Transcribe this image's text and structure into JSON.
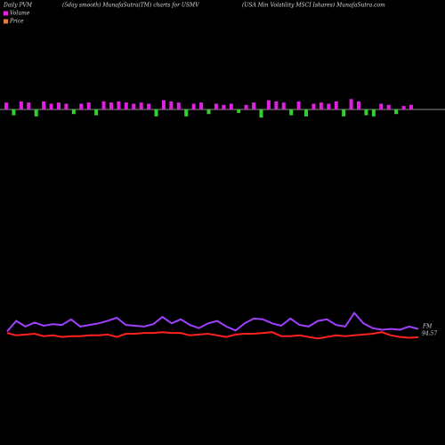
{
  "chart_data": {
    "type": "pvm",
    "title_left": "Daily PVM",
    "title": "(5day smooth) MunafaSutra(TM) charts for USMV",
    "title_right": "(USA Min Volatility MSCI Ishares) MunafaSutra.com",
    "bars": {
      "name": "Volume",
      "color": "#e020e0",
      "down_color": "#30d030",
      "values": [
        6,
        -5,
        7,
        6,
        -6,
        7,
        5,
        6,
        5,
        -4,
        5,
        6,
        -5,
        7,
        6,
        7,
        6,
        5,
        6,
        5,
        -6,
        8,
        7,
        6,
        -6,
        5,
        6,
        -4,
        5,
        4,
        5,
        -3,
        4,
        6,
        -7,
        8,
        7,
        6,
        -5,
        7,
        -6,
        5,
        6,
        5,
        7,
        -6,
        9,
        7,
        -5,
        -6,
        5,
        4,
        -4,
        3,
        4
      ]
    },
    "ylim": [
      90,
      100
    ],
    "series": [
      {
        "color": "#a040ff",
        "values": [
          95.3,
          96.6,
          95.9,
          96.4,
          96.0,
          96.2,
          96.1,
          96.8,
          95.9,
          96.1,
          96.3,
          96.6,
          97.0,
          96.1,
          96.0,
          95.9,
          96.2,
          97.1,
          96.3,
          96.8,
          96.1,
          95.7,
          96.3,
          96.6,
          95.9,
          95.4,
          96.3,
          96.9,
          96.8,
          96.3,
          96.0,
          96.9,
          96.1,
          95.9,
          96.6,
          96.8,
          96.1,
          95.9,
          97.6,
          96.3,
          95.7,
          95.5,
          95.6,
          95.5,
          95.9,
          95.6
        ]
      },
      {
        "name": "Price",
        "color": "#ff2020",
        "values": [
          95.1,
          94.8,
          94.9,
          95.0,
          94.7,
          94.8,
          94.6,
          94.7,
          94.7,
          94.8,
          94.8,
          94.9,
          94.6,
          95.0,
          95.0,
          95.1,
          95.1,
          95.2,
          95.1,
          95.1,
          94.8,
          94.9,
          95.0,
          94.8,
          94.6,
          94.9,
          95.0,
          95.0,
          95.1,
          95.2,
          94.7,
          94.7,
          94.8,
          94.6,
          94.4,
          94.6,
          94.8,
          94.7,
          94.8,
          94.9,
          95.0,
          95.2,
          94.8,
          94.6,
          94.5,
          94.57
        ]
      }
    ],
    "legend_colors": [
      "#e020e0",
      "#e08040"
    ],
    "end_label": "FM",
    "last_price": 94.57
  }
}
